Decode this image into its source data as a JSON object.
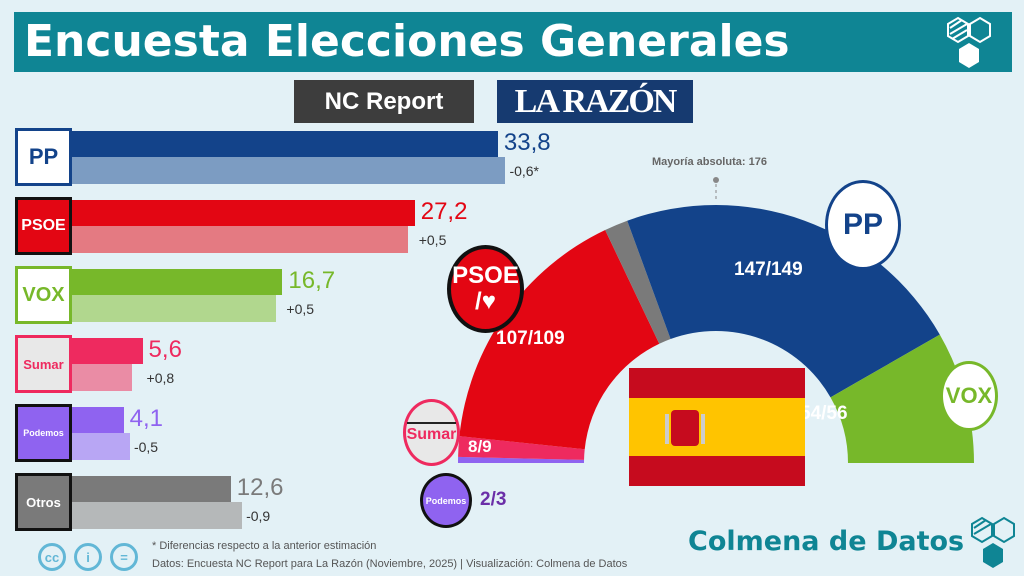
{
  "header": {
    "title": "Encuesta Elecciones Generales",
    "pollster": "NC Report",
    "media": "LA RAZÓN"
  },
  "colors": {
    "title_bg": "#0f8594",
    "background": "#e3f1f6"
  },
  "chart_data": [
    {
      "type": "bar",
      "orientation": "horizontal",
      "categories": [
        "PP",
        "PSOE",
        "VOX",
        "Sumar",
        "Podemos",
        "Otros"
      ],
      "series": [
        {
          "values": [
            33.8,
            27.2,
            16.7,
            5.6,
            4.1,
            12.6
          ]
        }
      ],
      "differences": [
        "-0,6*",
        "+0,5",
        "+0,5",
        "+0,8",
        "-0,5",
        "-0,9"
      ],
      "value_labels": [
        "33,8",
        "27,2",
        "16,7",
        "5,6",
        "4,1",
        "12,6"
      ],
      "colors": [
        "#13438a",
        "#e30613",
        "#77b82a",
        "#ee2a5f",
        "#8f63f0",
        "#7a7a7a"
      ],
      "prev_colors": [
        "#7c9cc2",
        "#e47a82",
        "#b1d78e",
        "#ea8ca5",
        "#b8a6f4",
        "#b5b8b9"
      ]
    },
    {
      "type": "pie",
      "subtype": "hemicycle",
      "total_seats": 350,
      "majority_label": "Mayoría absoluta: 176",
      "parties": [
        {
          "name": "Podemos",
          "seats_label": "2/3",
          "min": 2,
          "max": 3,
          "color": "#8f63f0"
        },
        {
          "name": "Sumar",
          "seats_label": "8/9",
          "min": 8,
          "max": 9,
          "color": "#ee2a5f"
        },
        {
          "name": "PSOE",
          "seats_label": "107/109",
          "min": 107,
          "max": 109,
          "color": "#e30613"
        },
        {
          "name": "Otros",
          "seats_label": "",
          "color": "#7a7a7a"
        },
        {
          "name": "PP",
          "seats_label": "147/149",
          "min": 147,
          "max": 149,
          "color": "#13438a"
        },
        {
          "name": "VOX",
          "seats_label": "54/56",
          "min": 54,
          "max": 56,
          "color": "#77b82a"
        }
      ]
    }
  ],
  "logos": {
    "pp": "PP",
    "psoe": "PSOE",
    "psoe_sub": "/♥",
    "vox": "VOX",
    "sumar": "Sumar",
    "podemos": "Podemos",
    "otros": "Otros"
  },
  "footer": {
    "note": "* Diferencias respecto a la anterior estimación",
    "source": "Datos: Encuesta NC Report  para La Razón (Noviembre, 2025) | Visualización: Colmena de Datos",
    "brand": "Colmena de Datos",
    "cc": [
      "cc",
      "i",
      "="
    ]
  }
}
